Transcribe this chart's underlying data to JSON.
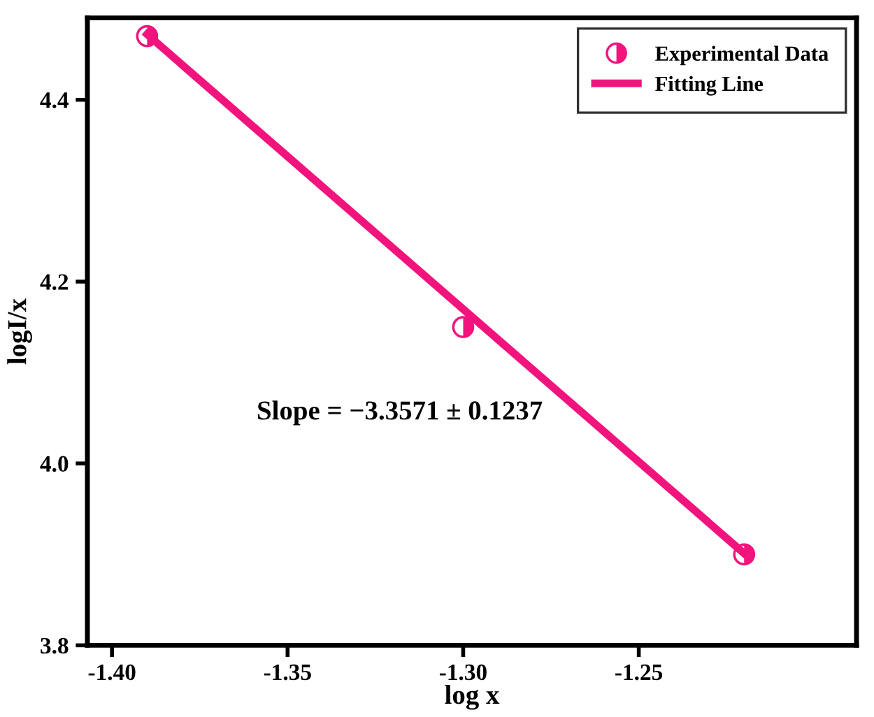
{
  "chart_data": {
    "type": "scatter",
    "xlabel": "log x",
    "ylabel": "logI/x",
    "xlim": [
      -1.407,
      -1.188
    ],
    "ylim": [
      3.8,
      4.49
    ],
    "xticks": [
      {
        "value": -1.4,
        "label": "-1.40"
      },
      {
        "value": -1.35,
        "label": "-1.35"
      },
      {
        "value": -1.3,
        "label": "-1.30"
      },
      {
        "value": -1.25,
        "label": "-1.25"
      }
    ],
    "yticks": [
      {
        "value": 3.8,
        "label": "3.8"
      },
      {
        "value": 4.0,
        "label": "4.0"
      },
      {
        "value": 4.2,
        "label": "4.2"
      },
      {
        "value": 4.4,
        "label": "4.4"
      }
    ],
    "grid": false,
    "legend": "top right",
    "annotations": [
      "Slope = −3.3571 ± 0.1237"
    ],
    "series": [
      {
        "name": "Experimental Data",
        "marker": "circle",
        "color": "#f0147c",
        "x": [
          -1.39,
          -1.3,
          -1.22
        ],
        "values": [
          4.47,
          4.15,
          3.9
        ]
      },
      {
        "name": "Fitting Line",
        "type": "line",
        "marker": "none",
        "line_style": "solid",
        "color": "#f0147c",
        "x": [
          -1.39,
          -1.22
        ],
        "values": [
          4.472,
          3.901
        ]
      }
    ]
  }
}
